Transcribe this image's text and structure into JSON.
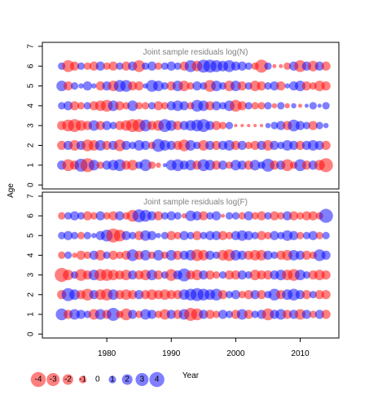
{
  "chart_data": {
    "type": "scatter",
    "subtype": "bubble",
    "ylabel": "Age",
    "xlabel": "Year",
    "grid": false,
    "legend_position": "bottom-left",
    "colors": {
      "negative": "#ff0000",
      "positive": "#0000ff",
      "opacity": 0.5
    },
    "x_ticks": [
      1980,
      1990,
      2000,
      2010
    ],
    "y_ticks": [
      0,
      1,
      2,
      3,
      4,
      5,
      6,
      7
    ],
    "panels": [
      {
        "title": "Joint sample residuals log(N)",
        "xlim": [
          1970,
          2016
        ],
        "ylim": [
          -0.2,
          7.2
        ],
        "ages": [
          1,
          2,
          3,
          4,
          5,
          6
        ],
        "years": [
          1973,
          1974,
          1975,
          1976,
          1977,
          1978,
          1979,
          1980,
          1981,
          1982,
          1983,
          1984,
          1985,
          1986,
          1987,
          1988,
          1989,
          1990,
          1991,
          1992,
          1993,
          1994,
          1995,
          1996,
          1997,
          1998,
          1999,
          2000,
          2001,
          2002,
          2003,
          2004,
          2005,
          2006,
          2007,
          2008,
          2009,
          2010,
          2011,
          2012,
          2013,
          2014
        ],
        "residuals": {
          "1": [
            1.5,
            -2.5,
            -1.5,
            3.0,
            -3.5,
            2.0,
            -1.0,
            1.5,
            2.0,
            2.5,
            -1.5,
            -2.0,
            1.0,
            2.5,
            -1.0,
            -0.5,
            0.3,
            2.0,
            2.5,
            1.5,
            2.0,
            -1.5,
            2.5,
            2.0,
            -1.5,
            1.5,
            -1.0,
            2.0,
            1.5,
            -1.5,
            2.0,
            1.0,
            3.0,
            -1.5,
            1.5,
            -2.5,
            -1.0,
            2.5,
            -1.5,
            1.5,
            -2.0,
            -3.5
          ],
          "2": [
            -1.5,
            1.5,
            -2.0,
            1.5,
            -2.5,
            -2.0,
            2.0,
            -1.5,
            1.5,
            -2.5,
            1.5,
            1.0,
            2.0,
            1.5,
            -1.0,
            3.0,
            2.0,
            1.5,
            -1.5,
            -2.5,
            2.0,
            1.0,
            -2.0,
            1.5,
            -1.5,
            1.5,
            2.0,
            -1.5,
            1.5,
            -1.0,
            -1.5,
            1.5,
            -2.0,
            1.5,
            1.0,
            2.0,
            1.5,
            -1.5,
            1.5,
            2.0,
            1.5,
            -1.5
          ],
          "3": [
            -1.5,
            -2.5,
            -3.0,
            -2.0,
            -1.5,
            2.0,
            -1.5,
            1.5,
            1.0,
            -1.5,
            -2.0,
            -3.0,
            -3.0,
            2.5,
            -1.5,
            -2.0,
            3.0,
            2.0,
            -1.5,
            1.5,
            2.0,
            2.5,
            3.0,
            1.5,
            -1.5,
            -1.0,
            1.0,
            -0.2,
            -0.2,
            -0.2,
            -0.2,
            -0.2,
            0.5,
            1.0,
            1.5,
            -1.5,
            2.5,
            1.5,
            1.0,
            -1.5,
            1.0,
            0.5
          ],
          "4": [
            1.0,
            1.5,
            -1.5,
            -1.0,
            1.0,
            -1.5,
            -2.0,
            -2.5,
            2.0,
            -1.5,
            -1.0,
            2.0,
            -1.0,
            -1.0,
            1.0,
            -1.5,
            -1.0,
            1.5,
            2.0,
            1.5,
            -1.0,
            2.5,
            2.0,
            -1.5,
            1.5,
            1.0,
            2.0,
            -2.5,
            -1.5,
            1.0,
            -1.0,
            -1.0,
            1.0,
            -0.5,
            1.0,
            -0.5,
            0.5,
            -0.3,
            0.3,
            1.0,
            0.3,
            1.0
          ],
          "5": [
            2.0,
            -1.5,
            1.0,
            0.5,
            1.5,
            0.5,
            -1.5,
            1.5,
            -2.0,
            2.5,
            2.5,
            -1.5,
            -1.5,
            0.5,
            2.5,
            2.0,
            1.0,
            -1.5,
            2.0,
            -2.0,
            -1.0,
            1.5,
            1.0,
            -2.5,
            2.0,
            1.0,
            -2.0,
            2.0,
            -1.5,
            1.0,
            -2.0,
            -1.5,
            1.0,
            1.5,
            -1.5,
            0.5,
            1.5,
            2.0,
            -1.5,
            -1.0,
            -2.0,
            -1.5
          ],
          "6": [
            1.0,
            -2.5,
            -1.5,
            1.0,
            -1.0,
            -1.5,
            1.5,
            -1.0,
            -1.5,
            1.0,
            -1.5,
            1.5,
            -2.5,
            1.0,
            1.5,
            -1.0,
            1.0,
            1.5,
            1.0,
            -1.5,
            2.5,
            -2.0,
            3.0,
            3.0,
            2.5,
            2.0,
            2.5,
            1.5,
            1.5,
            1.0,
            -1.0,
            -3.0,
            1.0,
            -0.3,
            -0.3,
            -1.0,
            1.5,
            -2.5,
            1.5,
            -2.0,
            1.5,
            -1.5
          ]
        }
      },
      {
        "title": "Joint sample residuals log(F)",
        "xlim": [
          1970,
          2016
        ],
        "ylim": [
          -0.2,
          7.2
        ],
        "ages": [
          1,
          2,
          3,
          4,
          5,
          6
        ],
        "years": [
          1973,
          1974,
          1975,
          1976,
          1977,
          1978,
          1979,
          1980,
          1981,
          1982,
          1983,
          1984,
          1985,
          1986,
          1987,
          1988,
          1989,
          1990,
          1991,
          1992,
          1993,
          1994,
          1995,
          1996,
          1997,
          1998,
          1999,
          2000,
          2001,
          2002,
          2003,
          2004,
          2005,
          2006,
          2007,
          2008,
          2009,
          2010,
          2011,
          2012,
          2013,
          2014
        ],
        "residuals": {
          "1": [
            2.5,
            -1.5,
            2.0,
            1.5,
            1.0,
            -2.0,
            2.0,
            -1.5,
            3.0,
            -1.0,
            -2.5,
            1.5,
            -1.0,
            2.0,
            1.5,
            -1.0,
            -2.0,
            1.5,
            -1.5,
            2.0,
            -3.0,
            -2.5,
            1.5,
            -1.5,
            -1.0,
            1.5,
            1.0,
            -1.5,
            2.0,
            -1.5,
            1.0,
            1.5,
            -2.5,
            1.5,
            2.0,
            -1.5,
            1.5,
            -2.0,
            1.5,
            -1.0,
            1.5,
            -1.5
          ],
          "2": [
            -1.5,
            3.0,
            2.0,
            -1.5,
            -2.5,
            1.5,
            -2.0,
            -2.5,
            2.0,
            -1.5,
            -2.0,
            -1.5,
            1.5,
            -1.5,
            -2.0,
            -1.5,
            -2.0,
            -1.5,
            -1.5,
            2.0,
            2.5,
            3.0,
            2.5,
            2.0,
            2.5,
            -1.5,
            1.0,
            1.5,
            -1.0,
            -1.5,
            1.5,
            -1.5,
            1.0,
            2.5,
            -1.5,
            2.0,
            2.5,
            1.5,
            -1.5,
            1.0,
            -1.5,
            -1.5
          ],
          "3": [
            -3.5,
            -2.0,
            1.0,
            -2.5,
            -1.5,
            2.0,
            -2.5,
            -2.5,
            -2.0,
            -1.5,
            -2.0,
            1.5,
            -1.5,
            -2.0,
            2.0,
            -1.5,
            1.0,
            -2.5,
            1.5,
            3.0,
            -1.5,
            -2.0,
            1.5,
            -1.5,
            -1.0,
            1.0,
            -1.5,
            -1.5,
            1.5,
            1.0,
            -2.0,
            -1.5,
            -1.5,
            1.5,
            2.0,
            -2.0,
            -2.5,
            2.0,
            1.0,
            -1.5,
            -2.0,
            -1.5
          ],
          "4": [
            -1.0,
            1.0,
            -0.5,
            -1.5,
            -1.0,
            1.5,
            -2.0,
            1.0,
            -1.5,
            -1.0,
            -1.5,
            2.5,
            -1.5,
            2.0,
            -1.0,
            2.0,
            -1.0,
            2.0,
            -1.5,
            1.5,
            2.0,
            -2.5,
            -2.0,
            1.5,
            1.0,
            -2.0,
            -2.5,
            2.0,
            1.5,
            -1.5,
            -2.0,
            -2.0,
            1.5,
            1.0,
            -1.5,
            -2.0,
            2.0,
            1.5,
            -1.5,
            -1.0,
            2.5,
            1.5
          ],
          "5": [
            1.0,
            1.5,
            1.0,
            -1.0,
            1.0,
            0.5,
            1.5,
            2.5,
            -3.5,
            -2.5,
            1.5,
            1.0,
            -1.5,
            2.0,
            1.5,
            0.5,
            1.0,
            -1.5,
            -1.0,
            1.5,
            1.0,
            -1.5,
            1.0,
            1.5,
            1.5,
            -1.5,
            -1.0,
            1.5,
            2.0,
            1.5,
            1.0,
            -1.5,
            -1.0,
            1.5,
            1.0,
            2.0,
            1.5,
            -1.0,
            1.0,
            1.5,
            -1.0,
            1.0
          ],
          "6": [
            -1.0,
            1.0,
            1.5,
            1.0,
            -1.5,
            -1.0,
            1.5,
            -1.0,
            -1.5,
            1.5,
            -1.0,
            -2.5,
            3.0,
            2.5,
            1.5,
            -1.5,
            1.0,
            1.5,
            1.0,
            -0.5,
            2.0,
            1.5,
            -1.5,
            1.0,
            1.5,
            -0.3,
            1.0,
            1.0,
            -1.0,
            1.5,
            -1.0,
            -1.5,
            1.0,
            -1.5,
            -1.0,
            1.5,
            -1.5,
            -1.0,
            -1.5,
            -1.5,
            -1.0,
            3.5
          ]
        }
      }
    ],
    "legend": {
      "values": [
        -4,
        -3,
        -2,
        -1,
        0,
        1,
        2,
        3,
        4
      ],
      "labels": [
        "-4",
        "-3",
        "-2",
        "-1",
        "0",
        "1",
        "2",
        "3",
        "4"
      ]
    }
  }
}
